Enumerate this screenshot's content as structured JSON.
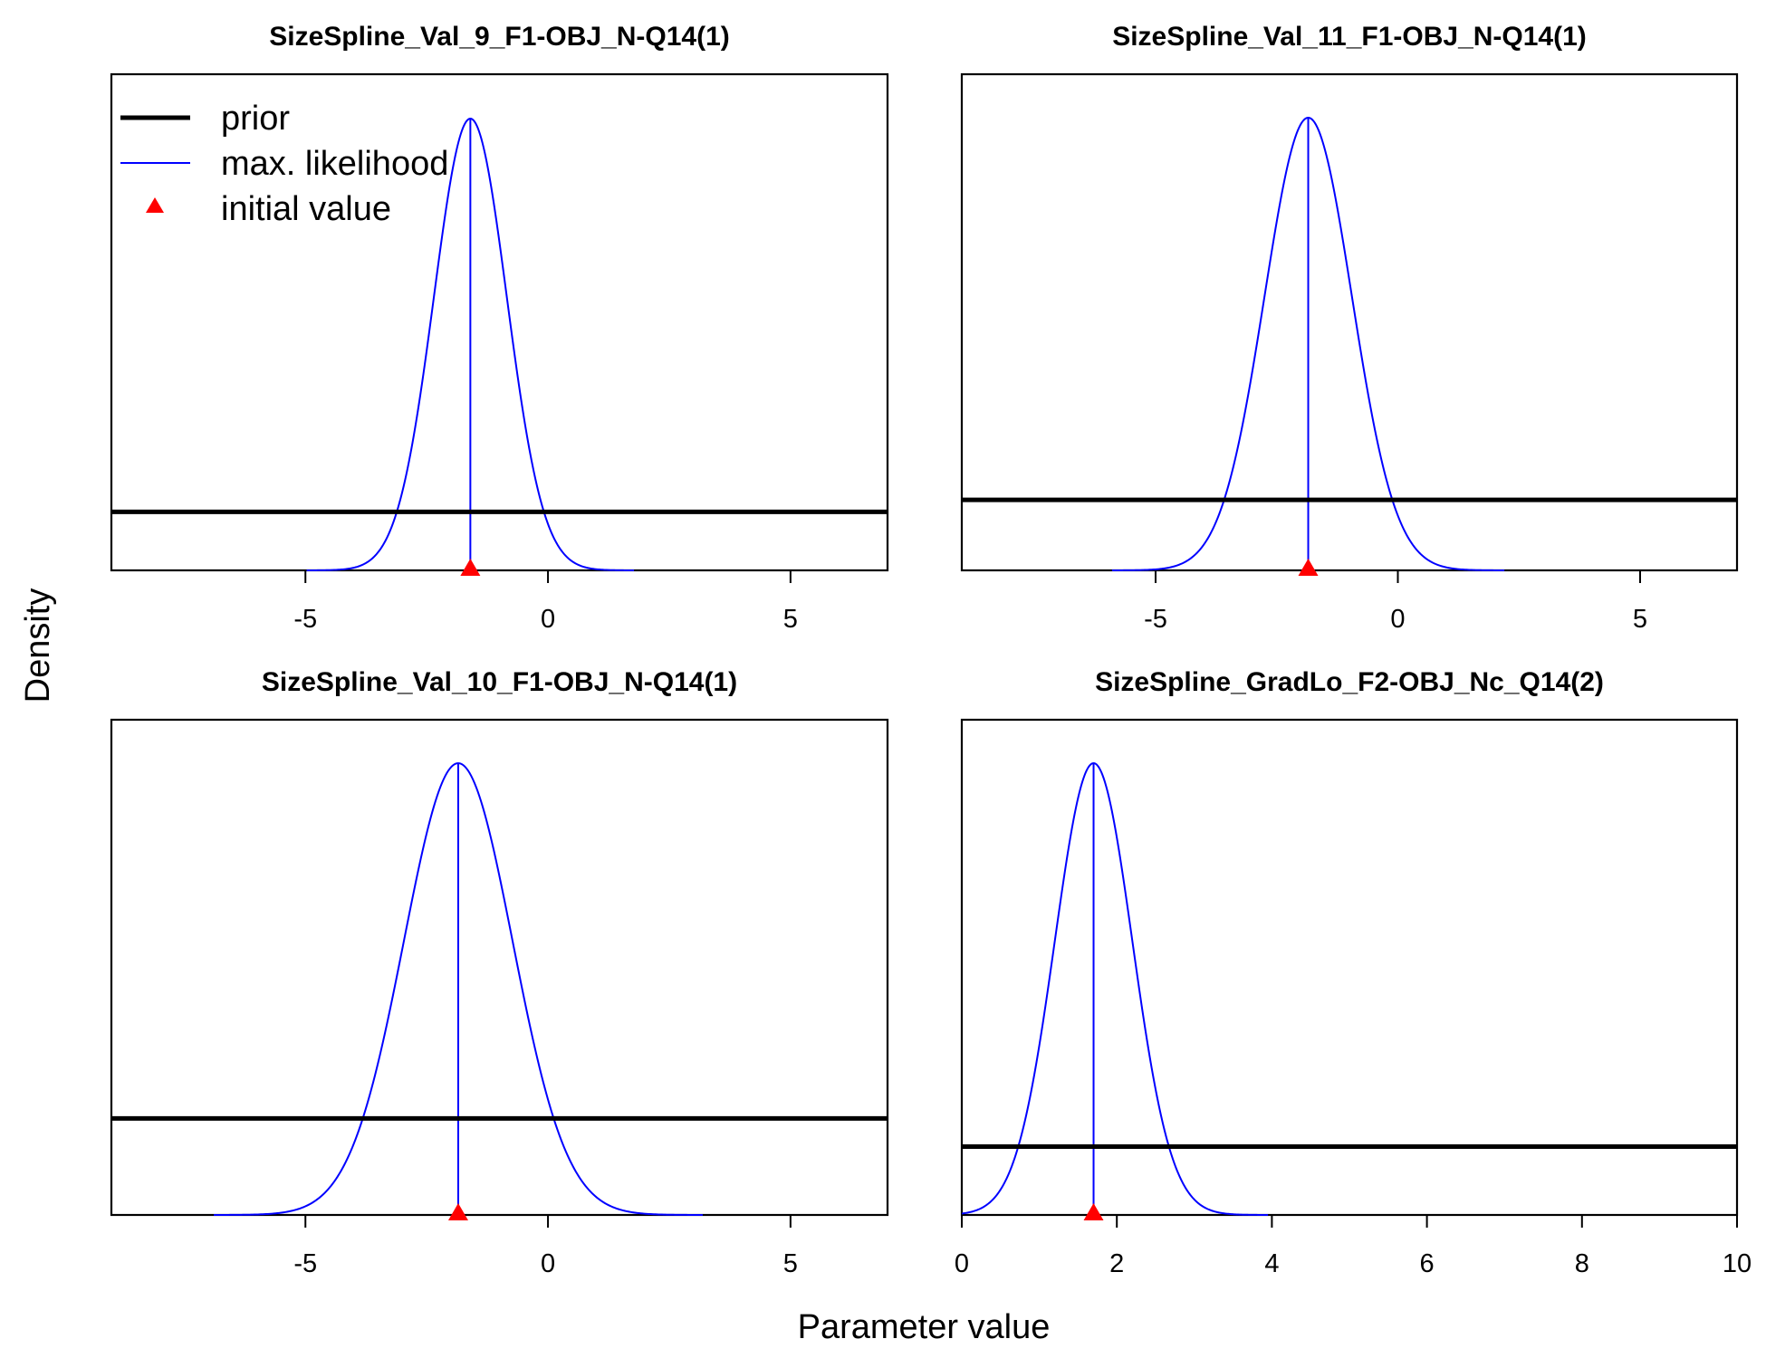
{
  "figure": {
    "xlabel": "Parameter value",
    "ylabel": "Density"
  },
  "legend": {
    "placement": "top-left of first panel",
    "items": [
      {
        "label": "prior",
        "color": "#000000",
        "style": "thick-line"
      },
      {
        "label": "max. likelihood",
        "color": "#0000ff",
        "style": "thin-line"
      },
      {
        "label": "initial value",
        "color": "#ff0000",
        "style": "triangle"
      }
    ]
  },
  "colors": {
    "prior": "#000000",
    "likelihood": "#0000ff",
    "initial": "#ff0000"
  },
  "chart_data": [
    {
      "type": "line",
      "title": "SizeSpline_Val_9_F1-OBJ_N-Q14(1)",
      "xlim": [
        -9,
        7
      ],
      "xticks": [
        -5,
        0,
        5
      ],
      "tick_labels": [
        "-5",
        "0",
        "5"
      ],
      "likelihood": {
        "mean": -1.6,
        "sd": 0.75
      },
      "prior_level": 0.118,
      "initial_value": -1.6
    },
    {
      "type": "line",
      "title": "SizeSpline_Val_11_F1-OBJ_N-Q14(1)",
      "xlim": [
        -9,
        7
      ],
      "xticks": [
        -5,
        0,
        5
      ],
      "tick_labels": [
        "-5",
        "0",
        "5"
      ],
      "likelihood": {
        "mean": -1.85,
        "sd": 0.9
      },
      "prior_level": 0.142,
      "initial_value": -1.85
    },
    {
      "type": "line",
      "title": "SizeSpline_Val_10_F1-OBJ_N-Q14(1)",
      "xlim": [
        -9,
        7
      ],
      "xticks": [
        -5,
        0,
        5
      ],
      "tick_labels": [
        "-5",
        "0",
        "5"
      ],
      "likelihood": {
        "mean": -1.85,
        "sd": 1.12
      },
      "prior_level": 0.195,
      "initial_value": -1.85
    },
    {
      "type": "line",
      "title": "SizeSpline_GradLo_F2-OBJ_Nc_Q14(2)",
      "xlim": [
        0,
        10
      ],
      "xticks": [
        0,
        2,
        4,
        6,
        8,
        10
      ],
      "tick_labels": [
        "0",
        "2",
        "4",
        "6",
        "8",
        "10"
      ],
      "likelihood": {
        "mean": 1.7,
        "sd": 0.5
      },
      "prior_level": 0.138,
      "initial_value": 1.7
    }
  ]
}
